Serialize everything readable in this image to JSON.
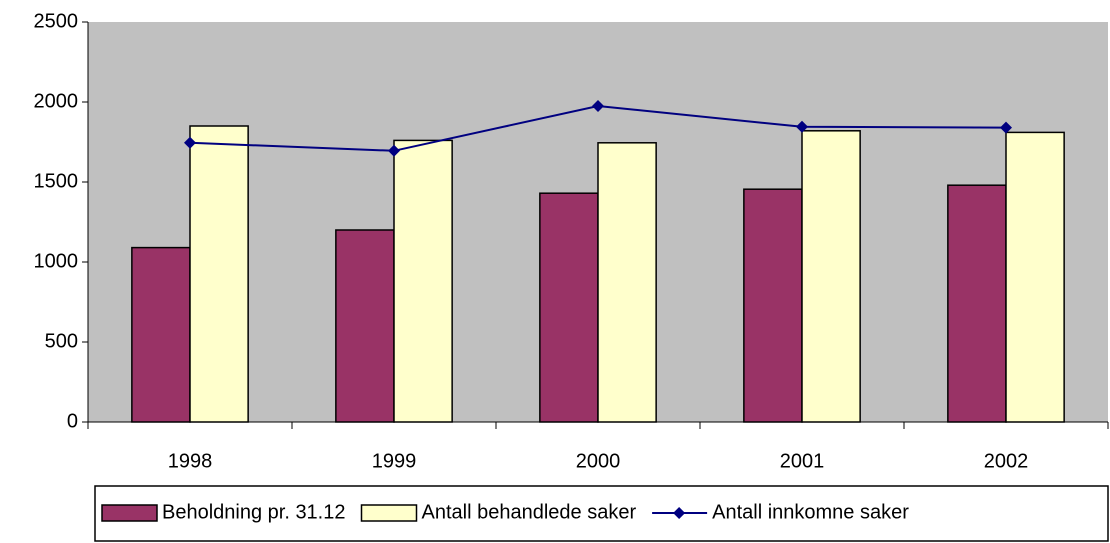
{
  "chart_data": {
    "type": "bar-line",
    "categories": [
      "1998",
      "1999",
      "2000",
      "2001",
      "2002"
    ],
    "series": [
      {
        "name": "Beholdning pr. 31.12",
        "type": "bar",
        "color": "#993366",
        "values": [
          1090,
          1200,
          1430,
          1455,
          1480
        ]
      },
      {
        "name": "Antall behandlede saker",
        "type": "bar",
        "color": "#ffffcc",
        "values": [
          1850,
          1760,
          1745,
          1820,
          1810
        ]
      },
      {
        "name": "Antall innkomne saker",
        "type": "line",
        "color": "#000080",
        "values": [
          1745,
          1695,
          1975,
          1845,
          1840
        ]
      }
    ],
    "ylim": [
      0,
      2500
    ],
    "yticks": [
      0,
      500,
      1000,
      1500,
      2000,
      2500
    ],
    "plot_background": "#c0c0c0",
    "legend": "bottom"
  }
}
